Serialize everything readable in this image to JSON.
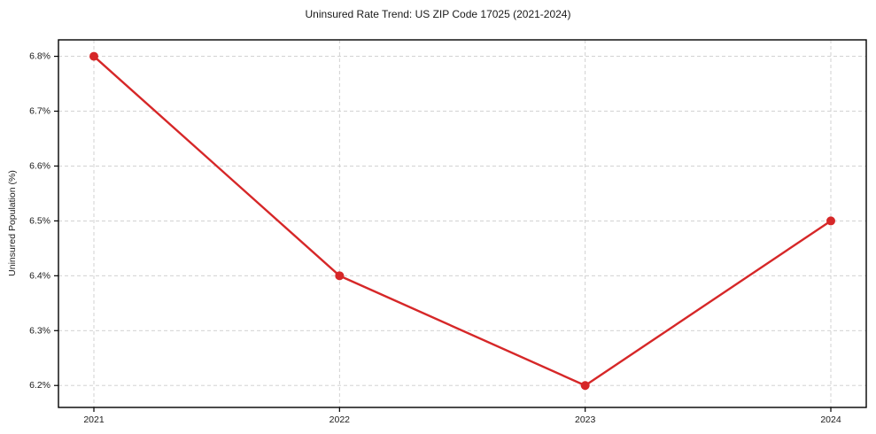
{
  "chart_data": {
    "type": "line",
    "title": "Uninsured Rate Trend: US ZIP Code 17025 (2021-2024)",
    "xlabel": "",
    "ylabel": "Uninsured Population (%)",
    "x": [
      2021,
      2022,
      2023,
      2024
    ],
    "x_tick_labels": [
      "2021",
      "2022",
      "2023",
      "2024"
    ],
    "values": [
      6.8,
      6.4,
      6.2,
      6.5
    ],
    "y_ticks": [
      6.2,
      6.3,
      6.4,
      6.5,
      6.6,
      6.7,
      6.8
    ],
    "y_tick_labels": [
      "6.2%",
      "6.3%",
      "6.4%",
      "6.5%",
      "6.6%",
      "6.7%",
      "6.8%"
    ],
    "ylim": [
      6.16,
      6.83
    ],
    "grid": "dashed-both-axes",
    "legend": "none",
    "line_color": "#d62728",
    "marker": "circle",
    "grid_color": "#cccccc",
    "axis_color": "#000000",
    "text_color": "#1a1a1a",
    "background_color": "#ffffff"
  }
}
